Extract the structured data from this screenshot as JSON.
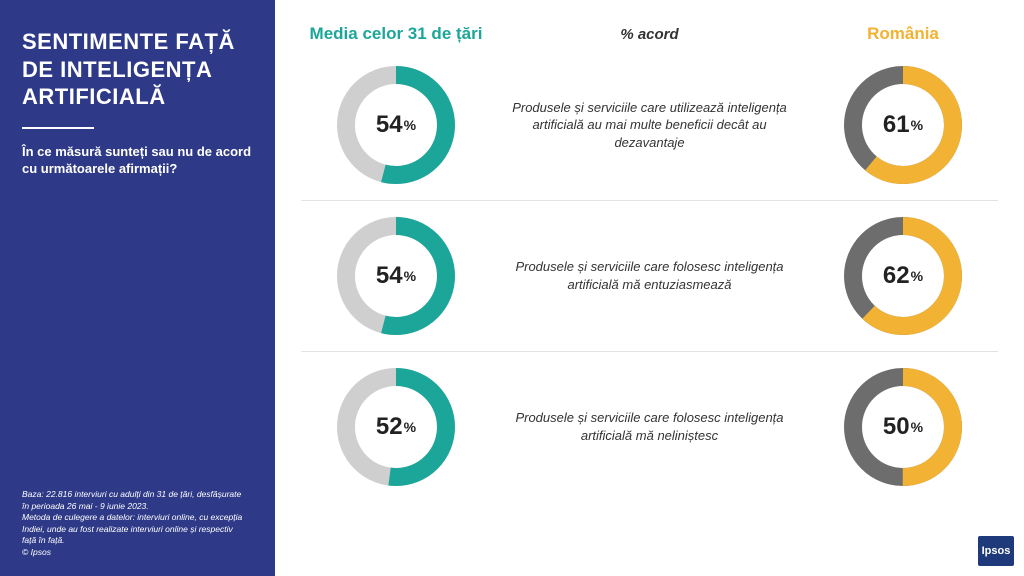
{
  "colors": {
    "sidebar_bg": "#2e3a87",
    "teal": "#1ca69a",
    "gold": "#f2b233",
    "track": "#cfcfcf",
    "track_right": "#6d6d6d"
  },
  "sidebar": {
    "title": "SENTIMENTE FAȚĂ DE INTELIGENȚA ARTIFICIALĂ",
    "subtitle": "În ce măsură sunteți sau nu de acord cu următoarele afirmații?",
    "footnote": "Baza: 22.816 interviuri cu adulți din 31 de țări, desfășurate în perioada 26 mai - 9 iunie 2023.\nMetoda de culegere a datelor: interviuri online, cu excepția Indiei, unde au fost realizate interviuri online și respectiv față în față.\n© Ipsos"
  },
  "headers": {
    "left": "Media celor 31 de țări",
    "center": "% acord",
    "right": "România"
  },
  "donut": {
    "stroke_width": 18,
    "radius": 50
  },
  "rows": [
    {
      "left_value": 54,
      "right_value": 61,
      "text": "Produsele și serviciile care utilizează inteligența artificială au mai multe beneficii decât au dezavantaje"
    },
    {
      "left_value": 54,
      "right_value": 62,
      "text": "Produsele și serviciile care folosesc inteligența artificială mă entuziasmează"
    },
    {
      "left_value": 52,
      "right_value": 50,
      "text": "Produsele și serviciile care folosesc inteligența artificială mă neliniștesc"
    }
  ],
  "logo_text": "Ipsos"
}
